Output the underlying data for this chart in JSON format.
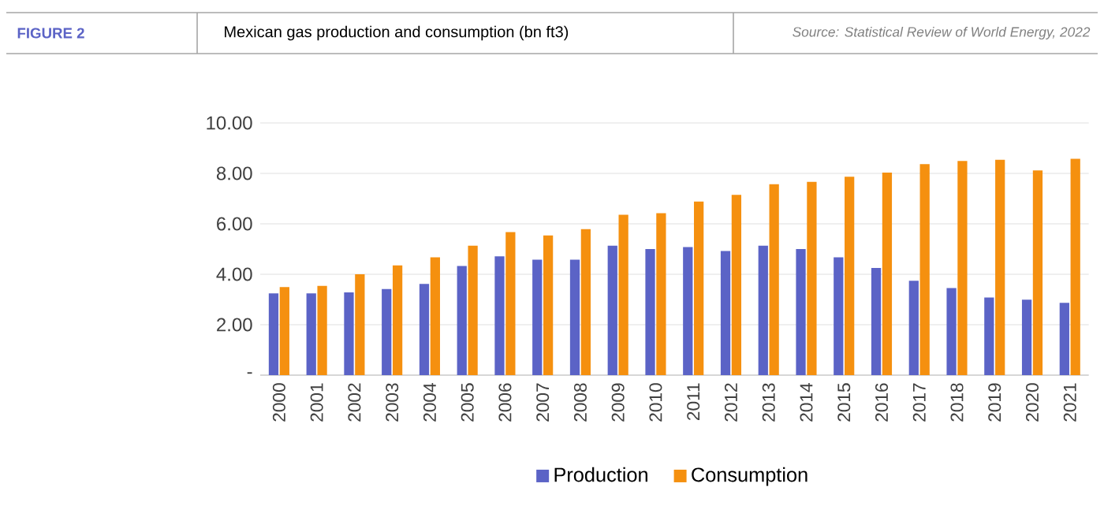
{
  "chart_data": {
    "type": "bar",
    "title": "Mexican gas production and consumption (bn ft3)",
    "annotations": [
      "FIGURE 2",
      "Source: Statistical Review of World Energy, 2022"
    ],
    "categories": [
      "2000",
      "2001",
      "2002",
      "2003",
      "2004",
      "2005",
      "2006",
      "2007",
      "2008",
      "2009",
      "2010",
      "2011",
      "2012",
      "2013",
      "2014",
      "2015",
      "2016",
      "2017",
      "2018",
      "2019",
      "2020",
      "2021"
    ],
    "series": [
      {
        "name": "Production",
        "color": "#5b63c6",
        "values": [
          3.24,
          3.24,
          3.28,
          3.41,
          3.62,
          4.33,
          4.71,
          4.58,
          4.58,
          5.13,
          5.0,
          5.08,
          4.92,
          5.13,
          5.0,
          4.67,
          4.25,
          3.74,
          3.45,
          3.08,
          2.99,
          2.87
        ]
      },
      {
        "name": "Consumption",
        "color": "#f5900f",
        "values": [
          3.49,
          3.54,
          4.0,
          4.35,
          4.67,
          5.13,
          5.67,
          5.54,
          5.79,
          6.36,
          6.42,
          6.88,
          7.15,
          7.57,
          7.66,
          7.87,
          8.03,
          8.37,
          8.49,
          8.54,
          8.12,
          8.58
        ]
      }
    ],
    "ylim": [
      0,
      10
    ],
    "yticks": [
      {
        "value": 0,
        "label": "-"
      },
      {
        "value": 2,
        "label": "2.00"
      },
      {
        "value": 4,
        "label": "4.00"
      },
      {
        "value": 6,
        "label": "6.00"
      },
      {
        "value": 8,
        "label": "8.00"
      },
      {
        "value": 10,
        "label": "10.00"
      }
    ],
    "grid": "y",
    "legend": "bottom"
  }
}
